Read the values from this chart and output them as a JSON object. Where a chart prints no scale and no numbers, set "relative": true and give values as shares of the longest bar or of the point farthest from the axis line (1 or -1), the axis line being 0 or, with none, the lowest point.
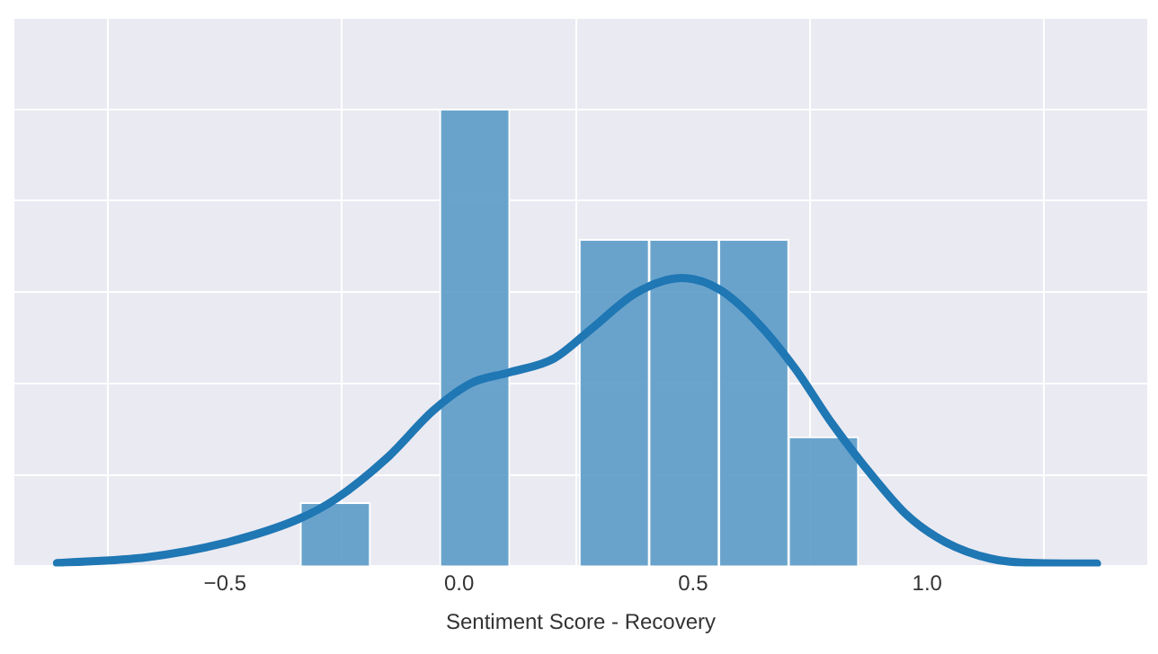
{
  "chart_data": {
    "type": "histogram",
    "xlabel": "Sentiment Score - Recovery",
    "relative": true,
    "grid": true,
    "xlim": [
      -0.95,
      1.47
    ],
    "xticks": [
      {
        "value": -0.5,
        "label": "−0.5"
      },
      {
        "value": 0,
        "label": "0.0"
      },
      {
        "value": 0.5,
        "label": "0.5"
      },
      {
        "value": 1,
        "label": "1.0"
      }
    ],
    "series": [
      {
        "color": "#5b9bc8",
        "bins": [
          -0.339,
          -0.19,
          -0.041,
          0.108,
          0.257,
          0.406,
          0.555,
          0.704,
          0.853
        ],
        "values": [
          0.139,
          0,
          1,
          0,
          0.715,
          0.715,
          0.715,
          0.283
        ]
      },
      {
        "type": "line",
        "color": "#1f77b4",
        "x": [
          -0.859,
          -0.666,
          -0.505,
          -0.344,
          -0.264,
          -0.151,
          -0.055,
          0.026,
          0.106,
          0.203,
          0.283,
          0.379,
          0.476,
          0.556,
          0.637,
          0.717,
          0.797,
          0.878,
          0.958,
          1.039,
          1.135,
          1.232,
          1.363
        ],
        "values": [
          0.007,
          0.02,
          0.05,
          0.103,
          0.147,
          0.24,
          0.341,
          0.401,
          0.424,
          0.455,
          0.52,
          0.599,
          0.631,
          0.606,
          0.534,
          0.434,
          0.312,
          0.204,
          0.111,
          0.053,
          0.017,
          0.007,
          0.006
        ]
      }
    ]
  }
}
